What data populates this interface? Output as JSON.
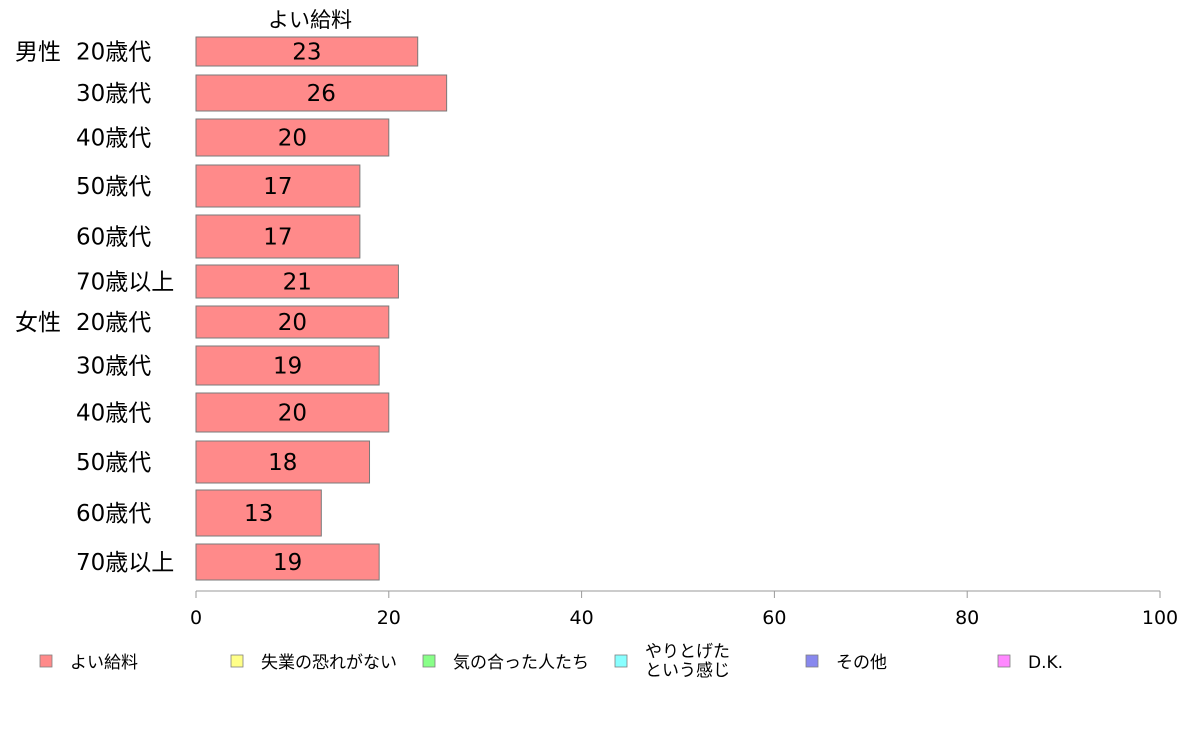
{
  "chart_data": {
    "type": "bar",
    "orientation": "horizontal",
    "title": "よい給料",
    "groups": [
      "男性",
      "女性"
    ],
    "categories": [
      "20歳代",
      "30歳代",
      "40歳代",
      "50歳代",
      "60歳代",
      "70歳以上",
      "20歳代",
      "30歳代",
      "40歳代",
      "50歳代",
      "60歳代",
      "70歳以上"
    ],
    "category_group": [
      "男性",
      null,
      null,
      null,
      null,
      null,
      "女性",
      null,
      null,
      null,
      null,
      null
    ],
    "series": [
      {
        "name": "よい給料",
        "color": "#ff8a8a",
        "values": [
          23,
          26,
          20,
          17,
          17,
          21,
          20,
          19,
          20,
          18,
          13,
          19
        ]
      }
    ],
    "xlim": [
      0,
      100
    ],
    "xticks": [
      "0",
      "20",
      "40",
      "60",
      "80",
      "100"
    ],
    "grid": false,
    "legend_position": "bottom",
    "legend": [
      {
        "label": "よい給料",
        "color": "#ff8a8a"
      },
      {
        "label": "失業の恐れがない",
        "color": "#ffff88"
      },
      {
        "label": "気の合った人たち",
        "color": "#88ff88"
      },
      {
        "label": "やりとげた\nという感じ",
        "color": "#88ffff"
      },
      {
        "label": "その他",
        "color": "#8888ee"
      },
      {
        "label": "D.K.",
        "color": "#ff88ff"
      }
    ]
  }
}
